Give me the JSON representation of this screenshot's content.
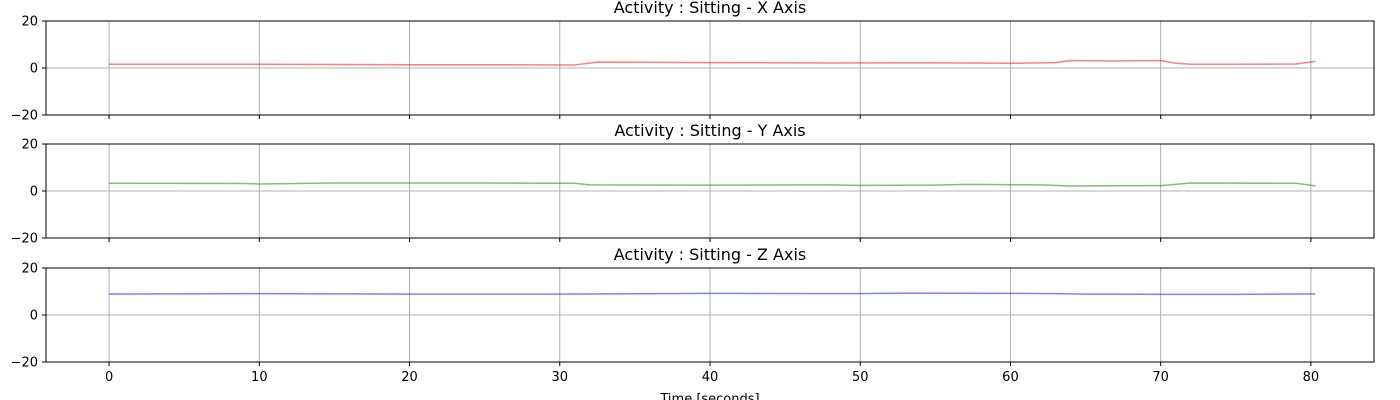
{
  "chart_data": [
    {
      "type": "line",
      "title": "Activity : Sitting - X Axis",
      "ylim": [
        -20,
        20
      ],
      "yticks": [
        -20,
        0,
        20
      ],
      "xlim": [
        -4.2,
        84.2
      ],
      "xticks": [
        0,
        10,
        20,
        30,
        40,
        50,
        60,
        70,
        80
      ],
      "show_xtick_labels": false,
      "grid": true,
      "series": [
        {
          "color": "#ff0000",
          "opacity": 0.5,
          "points": [
            [
              0,
              1.6
            ],
            [
              5,
              1.6
            ],
            [
              10,
              1.6
            ],
            [
              15,
              1.5
            ],
            [
              20,
              1.4
            ],
            [
              25,
              1.4
            ],
            [
              31,
              1.3
            ],
            [
              32.5,
              2.5
            ],
            [
              40,
              2.3
            ],
            [
              48,
              2.1
            ],
            [
              55,
              2.2
            ],
            [
              60,
              2.0
            ],
            [
              63,
              2.3
            ],
            [
              64,
              3.2
            ],
            [
              67,
              3.0
            ],
            [
              70,
              3.2
            ],
            [
              71,
              2.0
            ],
            [
              72,
              1.6
            ],
            [
              75,
              1.6
            ],
            [
              79,
              1.7
            ],
            [
              80.3,
              2.8
            ]
          ]
        }
      ]
    },
    {
      "type": "line",
      "title": "Activity : Sitting - Y Axis",
      "ylim": [
        -20,
        20
      ],
      "yticks": [
        -20,
        0,
        20
      ],
      "xlim": [
        -4.2,
        84.2
      ],
      "xticks": [
        0,
        10,
        20,
        30,
        40,
        50,
        60,
        70,
        80
      ],
      "show_xtick_labels": false,
      "grid": true,
      "series": [
        {
          "color": "#008000",
          "opacity": 0.5,
          "points": [
            [
              0,
              3.3
            ],
            [
              9,
              3.2
            ],
            [
              10,
              3.0
            ],
            [
              15,
              3.4
            ],
            [
              20,
              3.4
            ],
            [
              25,
              3.4
            ],
            [
              31,
              3.3
            ],
            [
              32,
              2.6
            ],
            [
              40,
              2.5
            ],
            [
              48,
              2.6
            ],
            [
              50,
              2.4
            ],
            [
              55,
              2.5
            ],
            [
              57,
              2.8
            ],
            [
              62,
              2.6
            ],
            [
              64,
              2.1
            ],
            [
              70,
              2.3
            ],
            [
              72,
              3.4
            ],
            [
              79,
              3.3
            ],
            [
              80.3,
              2.2
            ]
          ]
        }
      ]
    },
    {
      "type": "line",
      "title": "Activity : Sitting - Z Axis",
      "ylim": [
        -20,
        20
      ],
      "yticks": [
        -20,
        0,
        20
      ],
      "xlim": [
        -4.2,
        84.2
      ],
      "xticks": [
        0,
        10,
        20,
        30,
        40,
        50,
        60,
        70,
        80
      ],
      "show_xtick_labels": true,
      "xlabel": "Time [seconds]",
      "grid": true,
      "series": [
        {
          "color": "#0000ff",
          "opacity": 0.5,
          "points": [
            [
              0,
              8.9
            ],
            [
              10,
              9.1
            ],
            [
              20,
              8.9
            ],
            [
              30,
              8.9
            ],
            [
              40,
              9.2
            ],
            [
              50,
              9.1
            ],
            [
              53,
              9.3
            ],
            [
              60,
              9.2
            ],
            [
              63,
              9.1
            ],
            [
              65,
              8.9
            ],
            [
              70,
              8.8
            ],
            [
              75,
              8.8
            ],
            [
              80.3,
              9.0
            ]
          ]
        }
      ]
    }
  ]
}
